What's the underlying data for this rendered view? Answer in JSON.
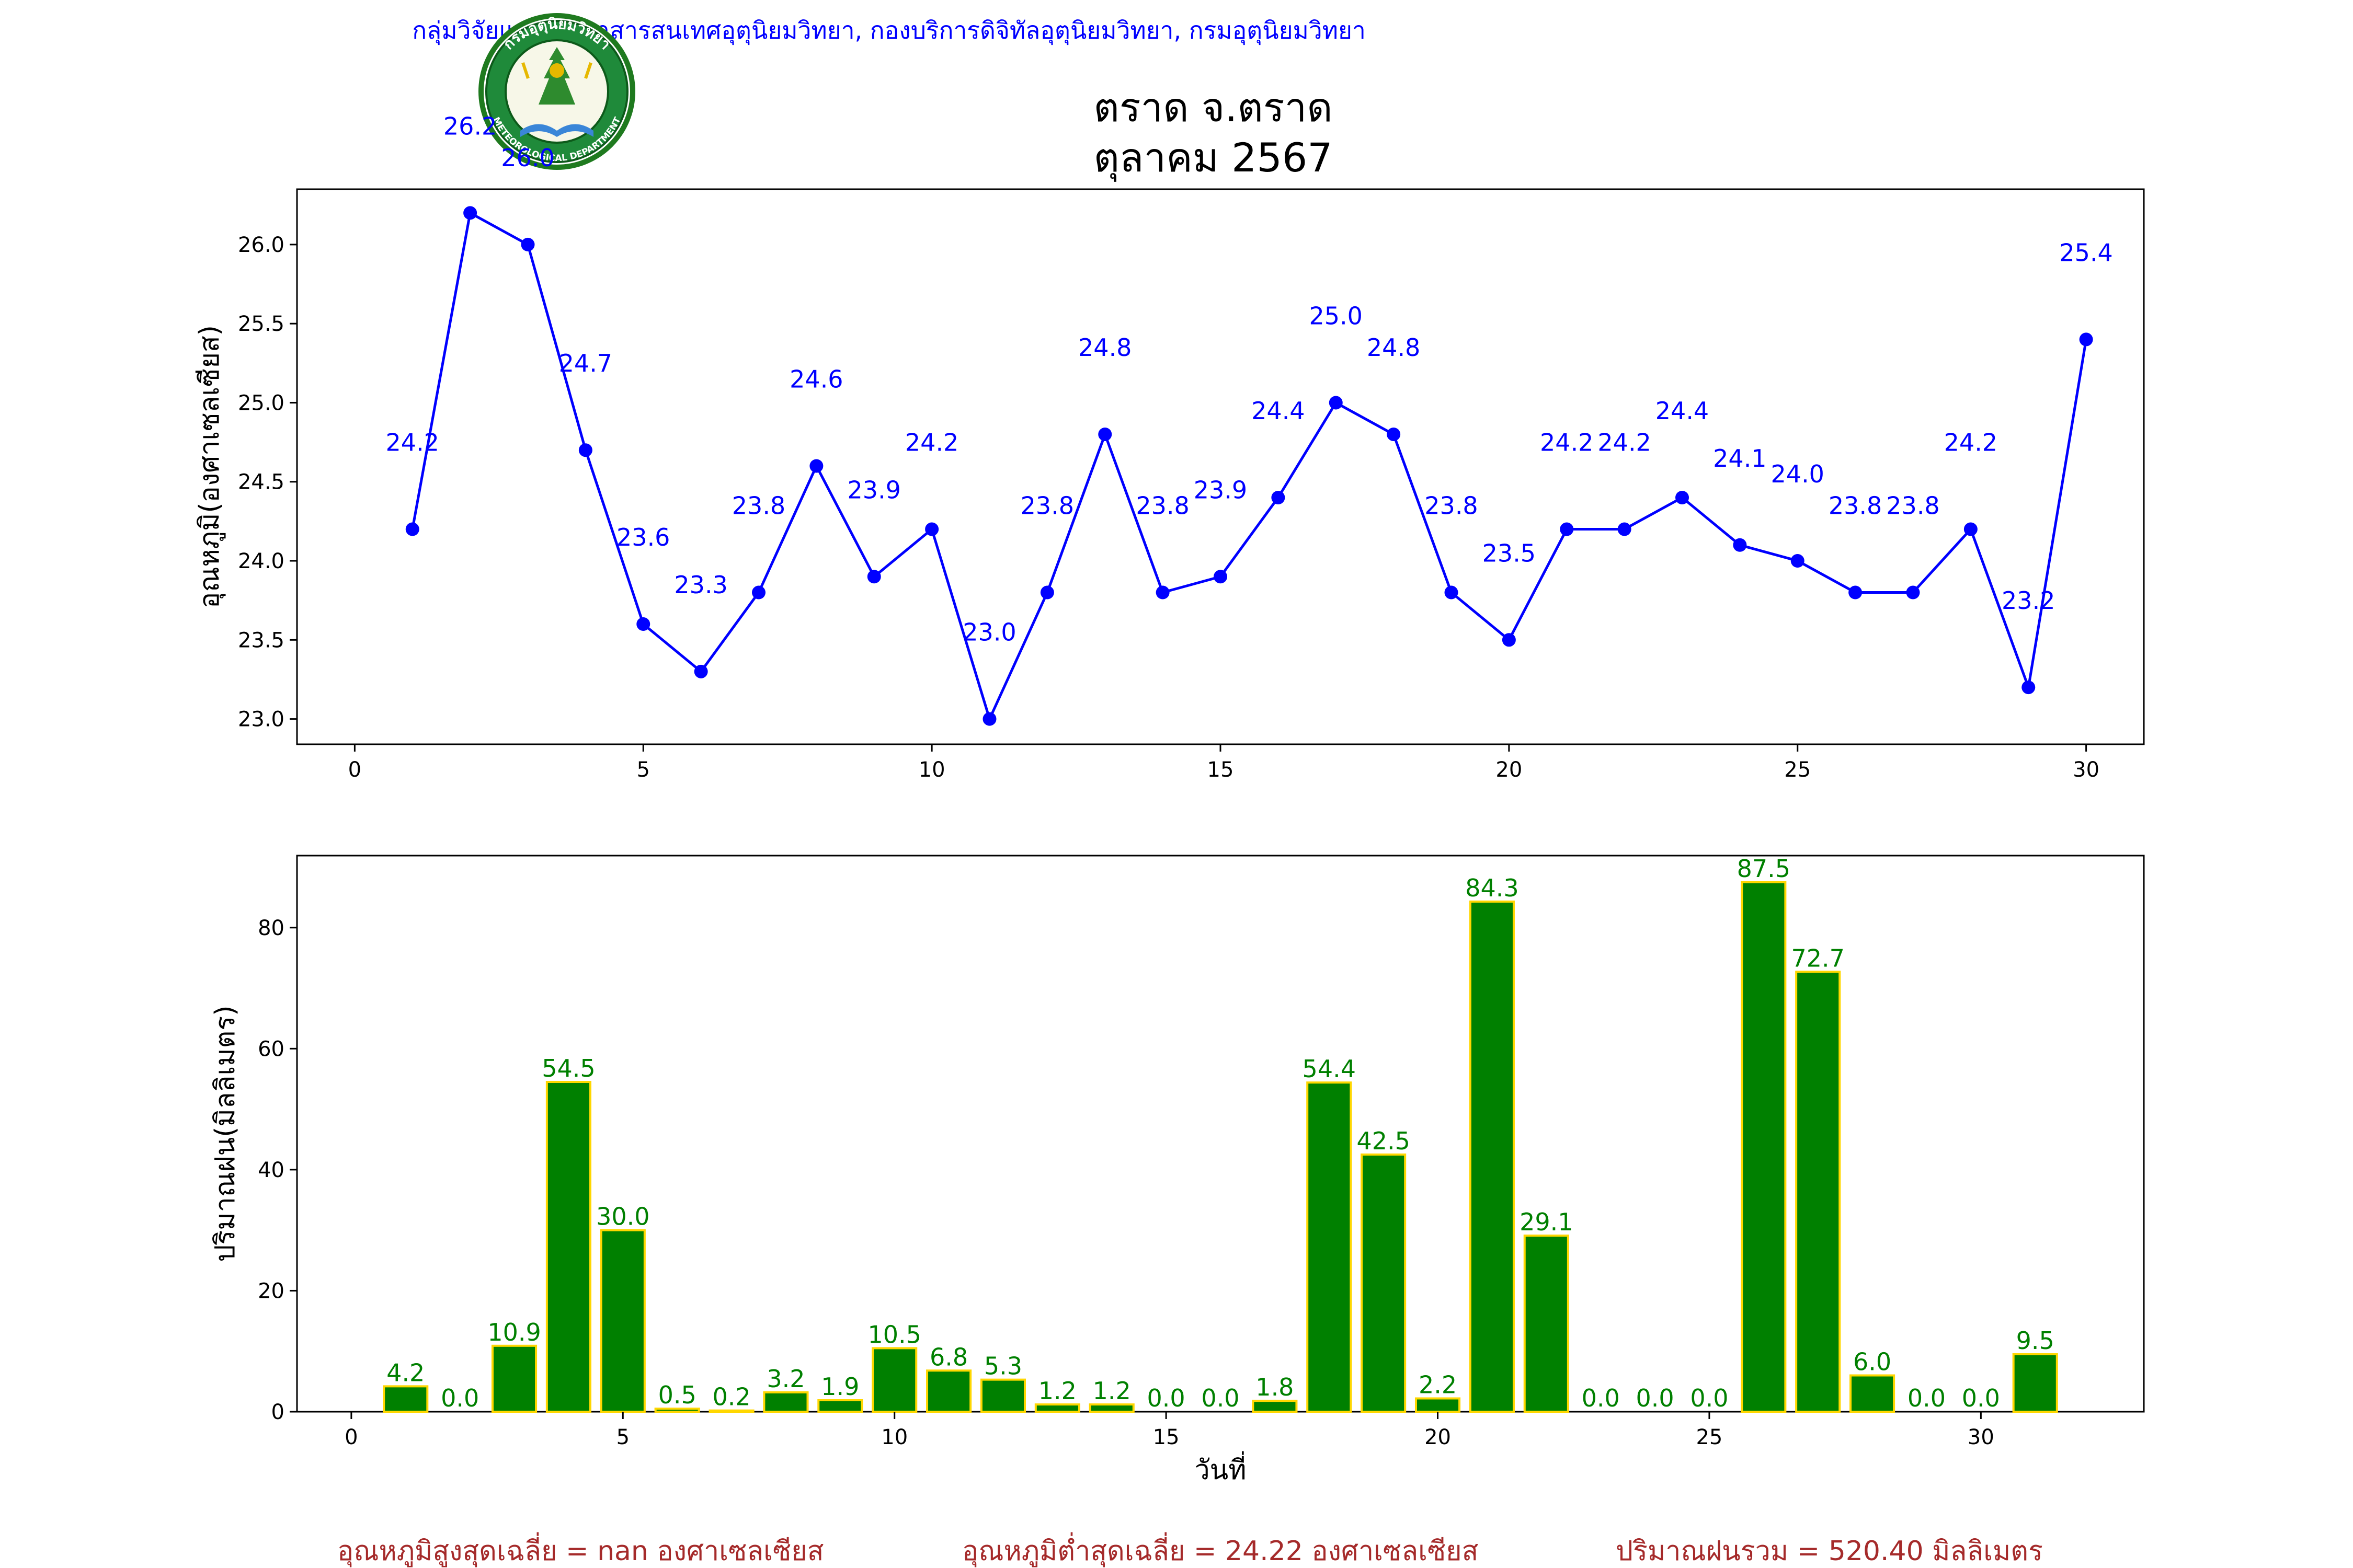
{
  "header": {
    "source_line": "กลุ่มวิจัยและพัฒนาสารสนเทศอุตุนิยมวิทยา, กองบริการดิจิทัลอุตุนิยมวิทยา, กรมอุตุนิยมวิทยา",
    "title_line1": "ตราด จ.ตราด",
    "title_line2": "ตุลาคม 2567",
    "logo": {
      "name": "meteorological-department-seal",
      "top_text": "กรมอุตุนิยมวิทยา",
      "bottom_text": "METEOROLOGICAL DEPARTMENT"
    }
  },
  "footer": {
    "max_temp_avg": "อุณหภูมิสูงสุดเฉลี่ย = nan องศาเซลเซียส",
    "min_temp_avg": "อุณหภูมิต่ำสุดเฉลี่ย = 24.22 องศาเซลเซียส",
    "rain_total": "ปริมาณฝนรวม = 520.40 มิลลิเมตร"
  },
  "colors": {
    "temperature": "#0000ff",
    "rain_bar": "#008000",
    "rain_edge": "#ffd700",
    "rain_label": "#008000",
    "source_text": "#0000ff",
    "footer_text": "#a52a2a"
  },
  "chart_data": [
    {
      "type": "line",
      "ylabel": "อุณหภูมิ(องศาเซลเซียส)",
      "xlim": [
        -1,
        31
      ],
      "ylim": [
        22.84,
        26.35
      ],
      "xticks": [
        0,
        5,
        10,
        15,
        20,
        25,
        30
      ],
      "yticks": [
        23.0,
        23.5,
        24.0,
        24.5,
        25.0,
        25.5,
        26.0
      ],
      "ytick_labels": [
        "23.0",
        "23.5",
        "24.0",
        "24.5",
        "25.0",
        "25.5",
        "26.0"
      ],
      "grid": false,
      "x": [
        1,
        2,
        3,
        4,
        5,
        6,
        7,
        8,
        9,
        10,
        11,
        12,
        13,
        14,
        15,
        16,
        17,
        18,
        19,
        20,
        21,
        22,
        23,
        24,
        25,
        26,
        27,
        28,
        29,
        30
      ],
      "values": [
        24.2,
        26.2,
        26.0,
        24.7,
        23.6,
        23.3,
        23.8,
        24.6,
        23.9,
        24.2,
        23.0,
        23.8,
        24.8,
        23.8,
        23.9,
        24.4,
        25.0,
        24.8,
        23.8,
        23.5,
        24.2,
        24.2,
        24.4,
        24.1,
        24.0,
        23.8,
        23.8,
        24.2,
        23.2,
        25.4
      ],
      "labels": [
        "24.2",
        "26.2",
        "26.0",
        "24.7",
        "23.6",
        "23.3",
        "23.8",
        "24.6",
        "23.9",
        "24.2",
        "23.0",
        "23.8",
        "24.8",
        "23.8",
        "23.9",
        "24.4",
        "25.0",
        "24.8",
        "23.8",
        "23.5",
        "24.2",
        "24.2",
        "24.4",
        "24.1",
        "24.0",
        "23.8",
        "23.8",
        "24.2",
        "23.2",
        "25.4"
      ]
    },
    {
      "type": "bar",
      "xlabel": "วันที่",
      "ylabel": "ปริมาณฝน(มิลลิเมตร)",
      "xlim": [
        -1,
        33
      ],
      "ylim": [
        0,
        91.9
      ],
      "xticks": [
        0,
        5,
        10,
        15,
        20,
        25,
        30
      ],
      "yticks": [
        0,
        20,
        40,
        60,
        80
      ],
      "grid": false,
      "x": [
        1,
        2,
        3,
        4,
        5,
        6,
        7,
        8,
        9,
        10,
        11,
        12,
        13,
        14,
        15,
        16,
        17,
        18,
        19,
        20,
        21,
        22,
        23,
        24,
        25,
        26,
        27,
        28,
        29,
        30,
        31
      ],
      "values": [
        4.2,
        0.0,
        10.9,
        54.5,
        30.0,
        0.5,
        0.2,
        3.2,
        1.9,
        10.5,
        6.8,
        5.3,
        1.2,
        1.2,
        0.0,
        0.0,
        1.8,
        54.4,
        42.5,
        2.2,
        84.3,
        29.1,
        0.0,
        0.0,
        0.0,
        87.5,
        72.7,
        6.0,
        0.0,
        0.0,
        9.5
      ],
      "labels": [
        "4.2",
        "0.0",
        "10.9",
        "54.5",
        "30.0",
        "0.5",
        "0.2",
        "3.2",
        "1.9",
        "10.5",
        "6.8",
        "5.3",
        "1.2",
        "1.2",
        "0.0",
        "0.0",
        "1.8",
        "54.4",
        "42.5",
        "2.2",
        "84.3",
        "29.1",
        "0.0",
        "0.0",
        "0.0",
        "87.5",
        "72.7",
        "6.0",
        "0.0",
        "0.0",
        "9.5"
      ]
    }
  ]
}
